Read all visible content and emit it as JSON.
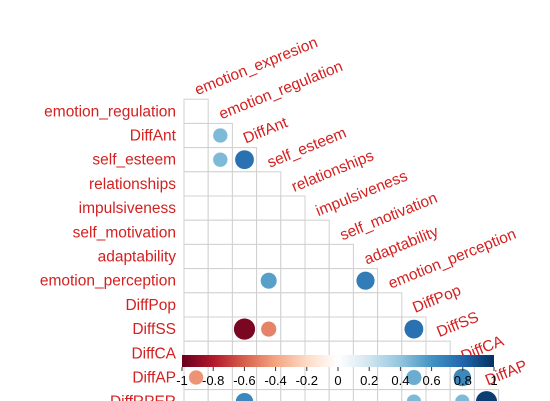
{
  "chart_data": {
    "type": "heatmap",
    "shape": "lower-triangle",
    "glyph": "circle",
    "variables": [
      "emotion_expresion",
      "emotion_regulation",
      "DiffAnt",
      "self_esteem",
      "relationships",
      "impulsiveness",
      "self_motivation",
      "adaptability",
      "emotion_perception",
      "DiffPop",
      "DiffSS",
      "DiffCA",
      "DiffAP",
      "DiffRPER"
    ],
    "row_labels": [
      "emotion_regulation",
      "DiffAnt",
      "self_esteem",
      "relationships",
      "impulsiveness",
      "self_motivation",
      "adaptability",
      "emotion_perception",
      "DiffPop",
      "DiffSS",
      "DiffCA",
      "DiffAP",
      "DiffRPER"
    ],
    "column_labels": [
      "emotion_expresion",
      "emotion_regulation",
      "DiffAnt",
      "self_esteem",
      "relationships",
      "impulsiveness",
      "self_motivation",
      "adaptability",
      "emotion_perception",
      "DiffPop",
      "DiffSS",
      "DiffCA",
      "DiffAP"
    ],
    "significant_correlations": [
      {
        "row": "DiffAnt",
        "col": "emotion_regulation",
        "r": 0.45
      },
      {
        "row": "self_esteem",
        "col": "emotion_regulation",
        "r": 0.45
      },
      {
        "row": "self_esteem",
        "col": "DiffAnt",
        "r": 0.75
      },
      {
        "row": "emotion_perception",
        "col": "self_esteem",
        "r": 0.55
      },
      {
        "row": "emotion_perception",
        "col": "adaptability",
        "r": 0.7
      },
      {
        "row": "DiffSS",
        "col": "DiffAnt",
        "r": -0.95
      },
      {
        "row": "DiffSS",
        "col": "self_esteem",
        "r": -0.5
      },
      {
        "row": "DiffSS",
        "col": "DiffPop",
        "r": 0.75
      },
      {
        "row": "DiffAP",
        "col": "emotion_expresion",
        "r": -0.45
      },
      {
        "row": "DiffAP",
        "col": "DiffPop",
        "r": 0.5
      },
      {
        "row": "DiffAP",
        "col": "DiffCA",
        "r": 0.65
      },
      {
        "row": "DiffRPER",
        "col": "DiffAnt",
        "r": 0.65
      },
      {
        "row": "DiffRPER",
        "col": "DiffPop",
        "r": 0.45
      },
      {
        "row": "DiffRPER",
        "col": "DiffCA",
        "r": 0.45
      },
      {
        "row": "DiffRPER",
        "col": "DiffAP",
        "r": 0.95
      }
    ],
    "colorbar": {
      "range": [
        -1,
        1
      ],
      "tick_labels": [
        "-1",
        "-0.8",
        "-0.6",
        "-0.4",
        "-0.2",
        "0",
        "0.2",
        "0.4",
        "0.6",
        "0.8",
        "1"
      ],
      "colors": [
        "#67001f",
        "#b2182b",
        "#d6604d",
        "#f4a582",
        "#fddbc7",
        "#ffffff",
        "#d1e5f0",
        "#92c5de",
        "#4393c3",
        "#2166ac",
        "#053061"
      ]
    },
    "label_color": "#d42020"
  }
}
